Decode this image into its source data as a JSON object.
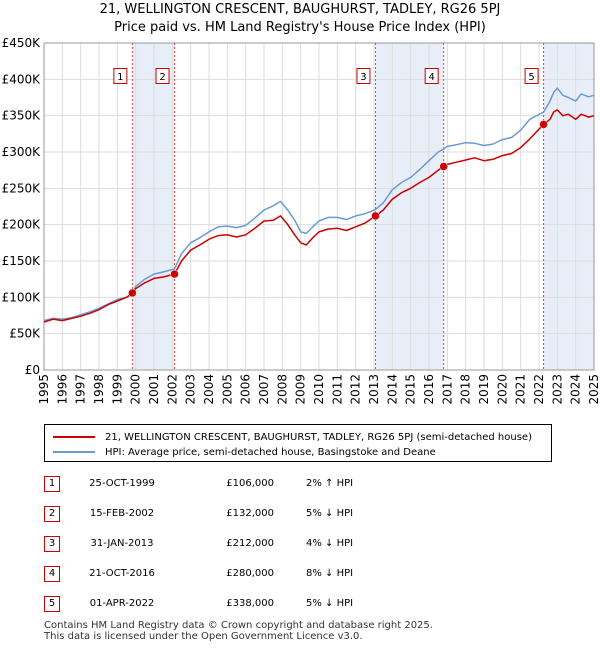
{
  "title_line1": "21, WELLINGTON CRESCENT, BAUGHURST, TADLEY, RG26 5PJ",
  "title_line2": "Price paid vs. HM Land Registry's House Price Index (HPI)",
  "colors": {
    "property": "#cc0000",
    "hpi": "#6a9ad4",
    "shade": "#e8eef8",
    "grid": "#dddddd",
    "marker_line": "#dd4444"
  },
  "legend": {
    "property": "21, WELLINGTON CRESCENT, BAUGHURST, TADLEY, RG26 5PJ (semi-detached house)",
    "hpi": "HPI: Average price, semi-detached house, Basingstoke and Deane"
  },
  "sales": [
    {
      "num": "1",
      "date": "25-OCT-1999",
      "price": "£106,000",
      "hpi": "2% ↑ HPI"
    },
    {
      "num": "2",
      "date": "15-FEB-2002",
      "price": "£132,000",
      "hpi": "5% ↓ HPI"
    },
    {
      "num": "3",
      "date": "31-JAN-2013",
      "price": "£212,000",
      "hpi": "4% ↓ HPI"
    },
    {
      "num": "4",
      "date": "21-OCT-2016",
      "price": "£280,000",
      "hpi": "8% ↓ HPI"
    },
    {
      "num": "5",
      "date": "01-APR-2022",
      "price": "£338,000",
      "hpi": "5% ↓ HPI"
    }
  ],
  "footer": {
    "line1": "Contains HM Land Registry data © Crown copyright and database right 2025.",
    "line2": "This data is licensed under the Open Government Licence v3.0."
  },
  "chart_data": {
    "type": "line",
    "title": "21, WELLINGTON CRESCENT, BAUGHURST, TADLEY, RG26 5PJ",
    "subtitle": "Price paid vs. HM Land Registry's House Price Index (HPI)",
    "xlim": [
      1995,
      2025
    ],
    "ylim": [
      0,
      450000
    ],
    "x_ticks": [
      "1995",
      "1996",
      "1997",
      "1998",
      "1999",
      "2000",
      "2001",
      "2002",
      "2003",
      "2004",
      "2005",
      "2006",
      "2007",
      "2008",
      "2009",
      "2010",
      "2011",
      "2012",
      "2013",
      "2014",
      "2015",
      "2016",
      "2017",
      "2018",
      "2019",
      "2020",
      "2021",
      "2022",
      "2023",
      "2024",
      "2025"
    ],
    "y_ticks": [
      {
        "value": 0,
        "label": "£0"
      },
      {
        "value": 50000,
        "label": "£50K"
      },
      {
        "value": 100000,
        "label": "£100K"
      },
      {
        "value": 150000,
        "label": "£150K"
      },
      {
        "value": 200000,
        "label": "£200K"
      },
      {
        "value": 250000,
        "label": "£250K"
      },
      {
        "value": 300000,
        "label": "£300K"
      },
      {
        "value": 350000,
        "label": "£350K"
      },
      {
        "value": 400000,
        "label": "£400K"
      },
      {
        "value": 450000,
        "label": "£450K"
      }
    ],
    "shaded_ranges": [
      [
        1999.82,
        2002.12
      ],
      [
        2013.08,
        2016.8
      ],
      [
        2022.25,
        2025
      ]
    ],
    "sale_points": [
      {
        "label": "1",
        "x": 1999.82,
        "y": 106000
      },
      {
        "label": "2",
        "x": 2002.12,
        "y": 132000
      },
      {
        "label": "3",
        "x": 2013.08,
        "y": 212000
      },
      {
        "label": "4",
        "x": 2016.8,
        "y": 280000
      },
      {
        "label": "5",
        "x": 2022.25,
        "y": 338000
      }
    ],
    "series": [
      {
        "name": "21, WELLINGTON CRESCENT, BAUGHURST, TADLEY, RG26 5PJ (semi-detached house)",
        "x": [
          1995,
          1995.5,
          1996,
          1996.5,
          1997,
          1997.5,
          1998,
          1998.5,
          1999,
          1999.5,
          1999.82,
          2000,
          2000.5,
          2001,
          2001.5,
          2002.12,
          2002.5,
          2003,
          2003.5,
          2004,
          2004.5,
          2005,
          2005.5,
          2006,
          2006.5,
          2007,
          2007.5,
          2007.9,
          2008.3,
          2008.7,
          2009.0,
          2009.3,
          2009.7,
          2010,
          2010.5,
          2011,
          2011.5,
          2012,
          2012.5,
          2013.08,
          2013.5,
          2014,
          2014.5,
          2015,
          2015.5,
          2016,
          2016.5,
          2016.8,
          2017,
          2017.5,
          2018,
          2018.5,
          2019,
          2019.5,
          2020,
          2020.5,
          2021,
          2021.5,
          2022.25,
          2022.6,
          2022.8,
          2023,
          2023.3,
          2023.6,
          2024,
          2024.3,
          2024.7,
          2025
        ],
        "y": [
          66000,
          70000,
          68000,
          71000,
          74000,
          78000,
          83000,
          90000,
          95000,
          100000,
          106000,
          112000,
          120000,
          126000,
          128000,
          132000,
          150000,
          165000,
          172000,
          180000,
          185000,
          186000,
          183000,
          186000,
          195000,
          205000,
          206000,
          212000,
          200000,
          185000,
          175000,
          172000,
          183000,
          190000,
          194000,
          195000,
          192000,
          197000,
          202000,
          212000,
          220000,
          235000,
          244000,
          250000,
          258000,
          265000,
          275000,
          280000,
          283000,
          286000,
          289000,
          292000,
          288000,
          290000,
          295000,
          298000,
          306000,
          318000,
          338000,
          345000,
          355000,
          358000,
          350000,
          352000,
          345000,
          352000,
          348000,
          350000
        ]
      },
      {
        "name": "HPI: Average price, semi-detached house, Basingstoke and Deane",
        "x": [
          1995,
          1995.5,
          1996,
          1996.5,
          1997,
          1997.5,
          1998,
          1998.5,
          1999,
          1999.5,
          1999.82,
          2000,
          2000.5,
          2001,
          2001.5,
          2002.12,
          2002.5,
          2003,
          2003.5,
          2004,
          2004.5,
          2005,
          2005.5,
          2006,
          2006.5,
          2007,
          2007.5,
          2007.9,
          2008.3,
          2008.7,
          2009.0,
          2009.3,
          2009.7,
          2010,
          2010.5,
          2011,
          2011.5,
          2012,
          2012.5,
          2013.08,
          2013.5,
          2014,
          2014.5,
          2015,
          2015.5,
          2016,
          2016.5,
          2016.8,
          2017,
          2017.5,
          2018,
          2018.5,
          2019,
          2019.5,
          2020,
          2020.5,
          2021,
          2021.5,
          2022.25,
          2022.6,
          2022.8,
          2023,
          2023.3,
          2023.6,
          2024,
          2024.3,
          2024.7,
          2025
        ],
        "y": [
          68000,
          71000,
          70000,
          72000,
          76000,
          80000,
          85000,
          91000,
          97000,
          100000,
          104000,
          115000,
          125000,
          132000,
          135000,
          139000,
          160000,
          175000,
          182000,
          190000,
          197000,
          198000,
          196000,
          199000,
          209000,
          220000,
          226000,
          232000,
          220000,
          205000,
          190000,
          188000,
          198000,
          205000,
          210000,
          210000,
          207000,
          212000,
          215000,
          221000,
          230000,
          248000,
          258000,
          265000,
          276000,
          288000,
          300000,
          304000,
          308000,
          310000,
          313000,
          312000,
          309000,
          311000,
          317000,
          320000,
          330000,
          345000,
          355000,
          370000,
          382000,
          388000,
          378000,
          375000,
          370000,
          380000,
          376000,
          378000
        ]
      }
    ]
  }
}
